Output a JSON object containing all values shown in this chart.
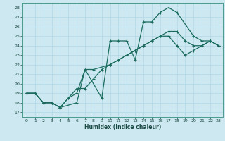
{
  "xlabel": "Humidex (Indice chaleur)",
  "bg_color": "#cde8f0",
  "grid_color": "#b0d8e8",
  "line_color": "#1a6b5e",
  "xlim": [
    -0.5,
    23.5
  ],
  "ylim": [
    16.5,
    28.5
  ],
  "xticks": [
    0,
    1,
    2,
    3,
    4,
    5,
    6,
    7,
    8,
    9,
    10,
    11,
    12,
    13,
    14,
    15,
    16,
    17,
    18,
    19,
    20,
    21,
    22,
    23
  ],
  "yticks": [
    17,
    18,
    19,
    20,
    21,
    22,
    23,
    24,
    25,
    26,
    27,
    28
  ],
  "line1_x": [
    0,
    1,
    2,
    3,
    4,
    6,
    7,
    9,
    10,
    11,
    12,
    13,
    14,
    15,
    16,
    17,
    18,
    20,
    21,
    22,
    23
  ],
  "line1_y": [
    19,
    19,
    18,
    18,
    17.5,
    18,
    21.5,
    18.5,
    24.5,
    24.5,
    24.5,
    22.5,
    26.5,
    26.5,
    27.5,
    28,
    27.5,
    25,
    24.5,
    24.5,
    24
  ],
  "line2_x": [
    0,
    1,
    2,
    3,
    4,
    5,
    6,
    7,
    8,
    10,
    11,
    12,
    13,
    14,
    15,
    16,
    17,
    18,
    19,
    20,
    21,
    22,
    23
  ],
  "line2_y": [
    19,
    19,
    18,
    18,
    17.5,
    18.5,
    19,
    21.5,
    21.5,
    22,
    22.5,
    23,
    23.5,
    24,
    24.5,
    25,
    25.5,
    25.5,
    24.5,
    24,
    24,
    24.5,
    24
  ],
  "line3_x": [
    0,
    1,
    2,
    3,
    4,
    5,
    6,
    7,
    8,
    9,
    10,
    11,
    12,
    13,
    14,
    15,
    16,
    17,
    18,
    19,
    20,
    21,
    22,
    23
  ],
  "line3_y": [
    19,
    19,
    18,
    18,
    17.5,
    18.5,
    19.5,
    19.5,
    20.5,
    21.5,
    22,
    22.5,
    23,
    23.5,
    24,
    24.5,
    25,
    25,
    24,
    23,
    23.5,
    24,
    24.5,
    24
  ]
}
